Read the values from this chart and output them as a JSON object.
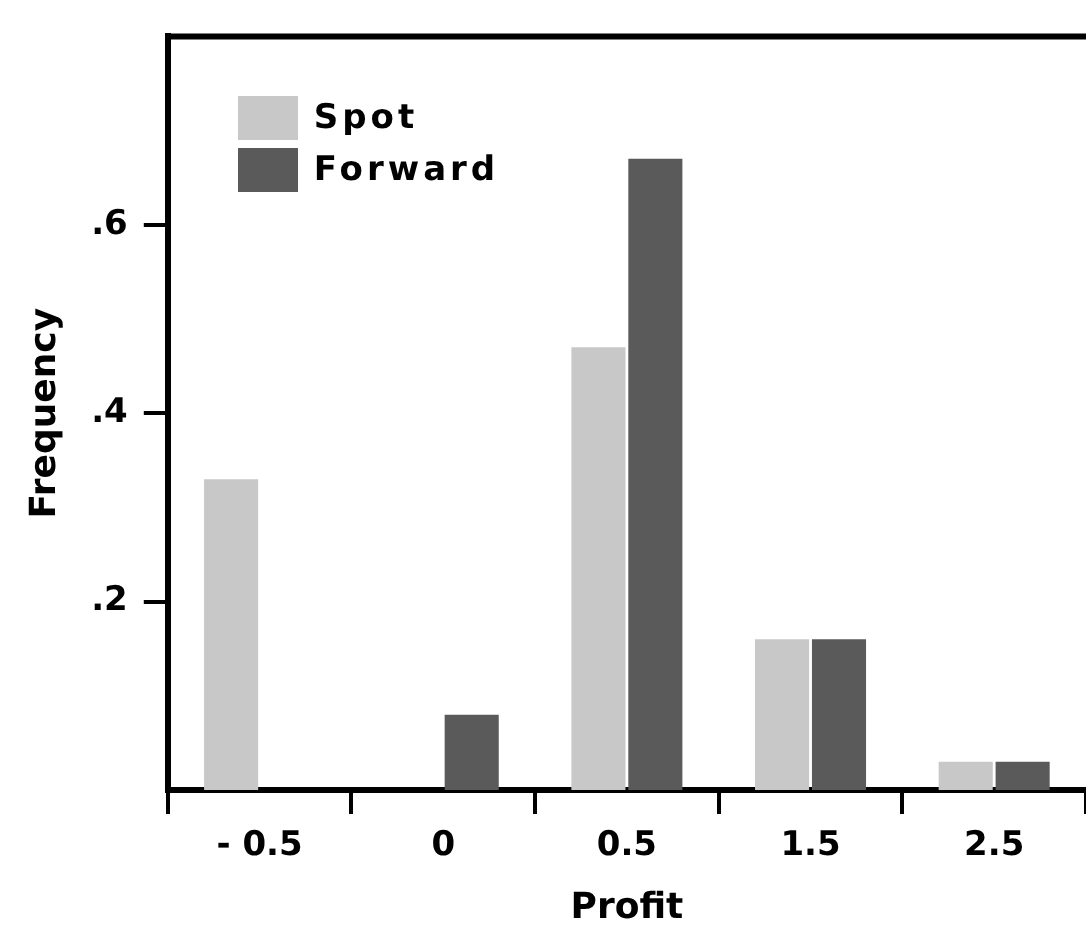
{
  "chart_data": {
    "type": "bar",
    "xlabel": "Profit",
    "ylabel": "Frequency",
    "categories": [
      "- 0.5",
      "0",
      "0.5",
      "1.5",
      "2.5"
    ],
    "series": [
      {
        "name": "Spot",
        "color": "#c8c8c8",
        "values": [
          0.33,
          null,
          0.47,
          0.16,
          0.03
        ]
      },
      {
        "name": "Forward",
        "color": "#5a5a5a",
        "values": [
          null,
          0.08,
          0.67,
          0.16,
          0.03
        ]
      }
    ],
    "ylim": [
      0,
      0.8
    ],
    "yticks": [
      {
        "value": 0.2,
        "label": ".2"
      },
      {
        "value": 0.4,
        "label": ".4"
      },
      {
        "value": 0.6,
        "label": ".6"
      }
    ],
    "grid": false,
    "legend": "top left"
  }
}
